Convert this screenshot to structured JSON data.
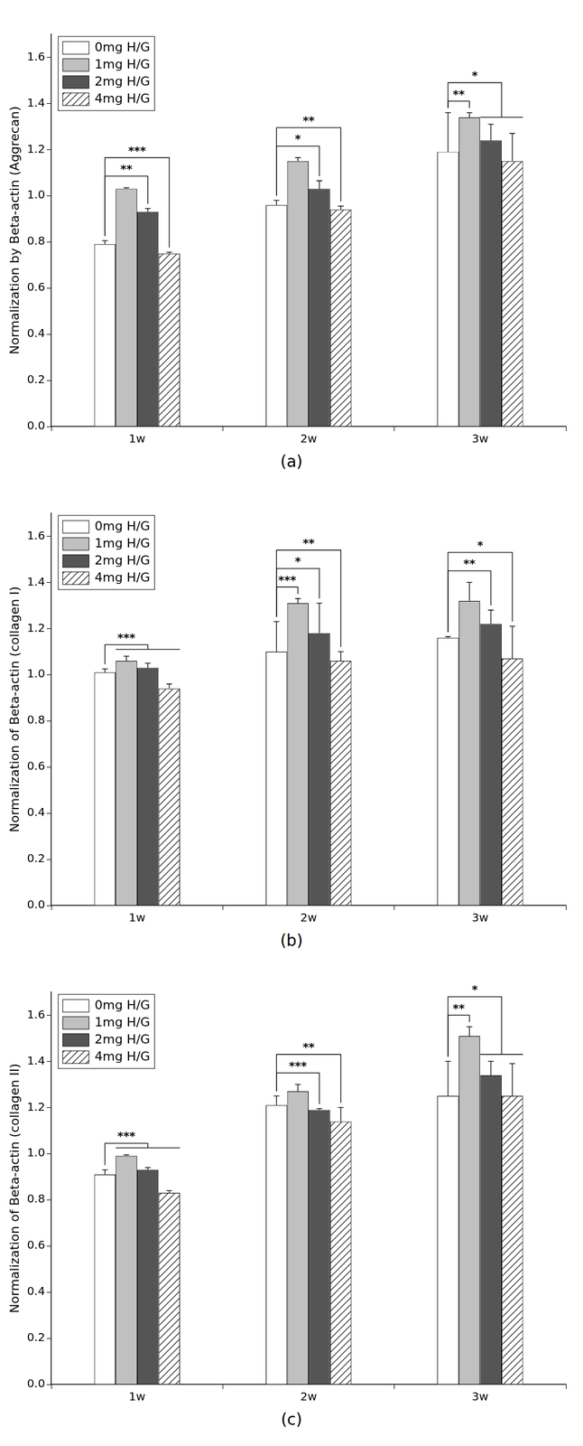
{
  "chart_data": [
    {
      "type": "bar",
      "caption": "(a)",
      "y_label": "Normalization by Beta-actin (Aggrecan)",
      "categories": [
        "1w",
        "2w",
        "3w"
      ],
      "series": [
        {
          "name": "0mg H/G",
          "color": "#ffffff",
          "values": [
            0.79,
            0.96,
            1.19
          ],
          "errors": [
            0.015,
            0.02,
            0.17
          ]
        },
        {
          "name": "1mg H/G",
          "color": "#c0c0c0",
          "values": [
            1.03,
            1.15,
            1.34
          ],
          "errors": [
            0.005,
            0.015,
            0.02
          ]
        },
        {
          "name": "2mg H/G",
          "color": "#555555",
          "values": [
            0.93,
            1.03,
            1.24
          ],
          "errors": [
            0.015,
            0.035,
            0.07
          ]
        },
        {
          "name": "4mg H/G",
          "color": "#ffffff",
          "values": [
            0.75,
            0.94,
            1.15
          ],
          "errors": [
            0.005,
            0.015,
            0.12
          ]
        }
      ],
      "ylim": [
        0,
        1.7
      ],
      "yticks": [
        {
          "value": 0,
          "label": "0.0"
        },
        0.2,
        0.4,
        0.6,
        0.8,
        {
          "value": 1,
          "label": "1.0"
        },
        1.2,
        1.4,
        1.6
      ],
      "grid": false,
      "legend": "upper left",
      "comparisons": [
        {
          "category": "1w",
          "from": "0mg H/G",
          "to": [
            "2mg H/G"
          ],
          "label": "**"
        },
        {
          "category": "1w",
          "from": "0mg H/G",
          "to": [
            "4mg H/G"
          ],
          "label": "***"
        },
        {
          "category": "2w",
          "from": "0mg H/G",
          "to": [
            "2mg H/G"
          ],
          "label": "*"
        },
        {
          "category": "2w",
          "from": "0mg H/G",
          "to": [
            "4mg H/G"
          ],
          "label": "**"
        },
        {
          "category": "3w",
          "from": "0mg H/G",
          "to": [
            "1mg H/G"
          ],
          "label": "**"
        },
        {
          "category": "3w",
          "from": "0mg H/G",
          "to": [
            "2mg H/G",
            "4mg H/G"
          ],
          "label": "*"
        }
      ]
    },
    {
      "type": "bar",
      "caption": "(b)",
      "y_label": "Normalization of Beta-actin (collagen I)",
      "categories": [
        "1w",
        "2w",
        "3w"
      ],
      "series": [
        {
          "name": "0mg H/G",
          "color": "#ffffff",
          "values": [
            1.01,
            1.1,
            1.16
          ],
          "errors": [
            0.015,
            0.13,
            0.005
          ]
        },
        {
          "name": "1mg H/G",
          "color": "#c0c0c0",
          "values": [
            1.06,
            1.31,
            1.32
          ],
          "errors": [
            0.02,
            0.02,
            0.08
          ]
        },
        {
          "name": "2mg H/G",
          "color": "#555555",
          "values": [
            1.03,
            1.18,
            1.22
          ],
          "errors": [
            0.02,
            0.13,
            0.06
          ]
        },
        {
          "name": "4mg H/G",
          "color": "#ffffff",
          "values": [
            0.94,
            1.06,
            1.07
          ],
          "errors": [
            0.02,
            0.04,
            0.14
          ]
        }
      ],
      "ylim": [
        0,
        1.7
      ],
      "yticks": [
        {
          "value": 0,
          "label": "0.0"
        },
        0.2,
        0.4,
        0.6,
        0.8,
        {
          "value": 1,
          "label": "1.0"
        },
        1.2,
        1.4,
        1.6
      ],
      "grid": false,
      "legend": "upper left",
      "comparisons": [
        {
          "category": "1w",
          "from": "0mg H/G",
          "to": [
            "1mg H/G",
            "2mg H/G",
            "4mg H/G"
          ],
          "label": "***"
        },
        {
          "category": "2w",
          "from": "0mg H/G",
          "to": [
            "1mg H/G"
          ],
          "label": "***"
        },
        {
          "category": "2w",
          "from": "0mg H/G",
          "to": [
            "2mg H/G"
          ],
          "label": "*"
        },
        {
          "category": "2w",
          "from": "0mg H/G",
          "to": [
            "4mg H/G"
          ],
          "label": "**"
        },
        {
          "category": "3w",
          "from": "0mg H/G",
          "to": [
            "2mg H/G"
          ],
          "label": "**"
        },
        {
          "category": "3w",
          "from": "0mg H/G",
          "to": [
            "4mg H/G"
          ],
          "label": "*"
        }
      ]
    },
    {
      "type": "bar",
      "caption": "(c)",
      "y_label": "Normalization of Beta-actin (collagen II)",
      "categories": [
        "1w",
        "2w",
        "3w"
      ],
      "series": [
        {
          "name": "0mg H/G",
          "color": "#ffffff",
          "values": [
            0.91,
            1.21,
            1.25
          ],
          "errors": [
            0.02,
            0.04,
            0.15
          ]
        },
        {
          "name": "1mg H/G",
          "color": "#c0c0c0",
          "values": [
            0.99,
            1.27,
            1.51
          ],
          "errors": [
            0.005,
            0.03,
            0.04
          ]
        },
        {
          "name": "2mg H/G",
          "color": "#555555",
          "values": [
            0.93,
            1.19,
            1.34
          ],
          "errors": [
            0.01,
            0.005,
            0.06
          ]
        },
        {
          "name": "4mg H/G",
          "color": "#ffffff",
          "values": [
            0.83,
            1.14,
            1.25
          ],
          "errors": [
            0.01,
            0.06,
            0.14
          ]
        }
      ],
      "ylim": [
        0,
        1.7
      ],
      "yticks": [
        {
          "value": 0,
          "label": "0.0"
        },
        0.2,
        0.4,
        0.6,
        0.8,
        {
          "value": 1,
          "label": "1.0"
        },
        1.2,
        1.4,
        1.6
      ],
      "grid": false,
      "legend": "upper left",
      "comparisons": [
        {
          "category": "1w",
          "from": "0mg H/G",
          "to": [
            "1mg H/G",
            "2mg H/G",
            "4mg H/G"
          ],
          "label": "***"
        },
        {
          "category": "2w",
          "from": "0mg H/G",
          "to": [
            "2mg H/G"
          ],
          "label": "***"
        },
        {
          "category": "2w",
          "from": "0mg H/G",
          "to": [
            "4mg H/G"
          ],
          "label": "**"
        },
        {
          "category": "3w",
          "from": "0mg H/G",
          "to": [
            "1mg H/G"
          ],
          "label": "**"
        },
        {
          "category": "3w",
          "from": "0mg H/G",
          "to": [
            "2mg H/G",
            "4mg H/G"
          ],
          "label": "*"
        }
      ]
    }
  ]
}
